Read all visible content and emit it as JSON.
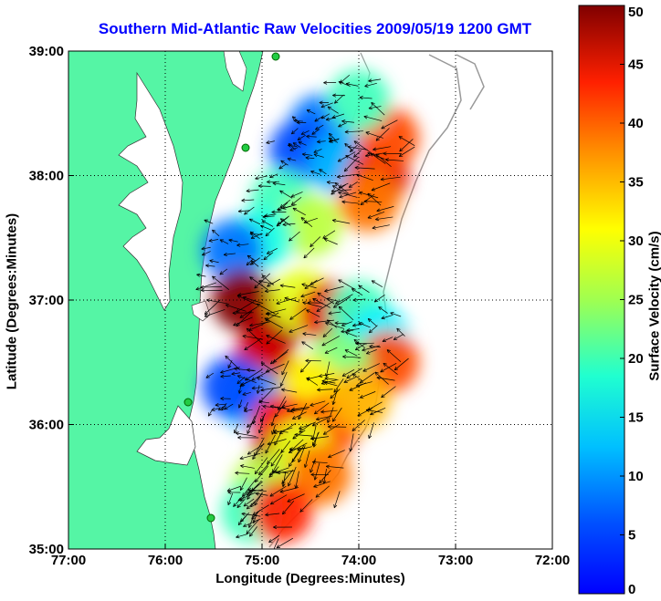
{
  "title": "Southern Mid-Atlantic Raw Velocities 2009/05/19 1200 GMT",
  "xlabel": "Longitude (Degrees:Minutes)",
  "ylabel": "Latitude (Degrees:Minutes)",
  "colorbar": {
    "label": "Surface Velocity (cm/s)",
    "min": 0,
    "max": 50,
    "ticks": [
      "0",
      "5",
      "10",
      "15",
      "20",
      "25",
      "30",
      "35",
      "40",
      "45",
      "50"
    ],
    "colormap": "jet"
  },
  "x_ticks": [
    "77:00",
    "76:00",
    "75:00",
    "74:00",
    "73:00",
    "72:00"
  ],
  "y_ticks": [
    "39:00",
    "38:00",
    "37:00",
    "36:00",
    "35:00"
  ],
  "colors": {
    "land": "#55f5a5",
    "title": "#0000ff",
    "grid": "#000000",
    "bathymetry": "#999999"
  },
  "chart_data": {
    "type": "heatmap",
    "title": "Southern Mid-Atlantic Raw Velocities 2009/05/19 1200 GMT",
    "xlabel": "Longitude (Degrees:Minutes)",
    "ylabel": "Latitude (Degrees:Minutes)",
    "xlim": [
      -77,
      -72
    ],
    "ylim": [
      35,
      39
    ],
    "x_ticks": [
      "77:00",
      "76:00",
      "75:00",
      "74:00",
      "73:00",
      "72:00"
    ],
    "y_ticks": [
      "39:00",
      "38:00",
      "37:00",
      "36:00",
      "35:00"
    ],
    "grid": true,
    "value_label": "Surface Velocity (cm/s)",
    "value_range": [
      0,
      50
    ],
    "regions": [
      {
        "lon": -74.4,
        "lat": 38.4,
        "speed": 12
      },
      {
        "lon": -74.6,
        "lat": 38.2,
        "speed": 10
      },
      {
        "lon": -74.2,
        "lat": 38.1,
        "speed": 15
      },
      {
        "lon": -73.8,
        "lat": 38.0,
        "speed": 45
      },
      {
        "lon": -73.7,
        "lat": 38.3,
        "speed": 40
      },
      {
        "lon": -74.0,
        "lat": 38.6,
        "speed": 22
      },
      {
        "lon": -73.9,
        "lat": 37.8,
        "speed": 38
      },
      {
        "lon": -74.8,
        "lat": 37.8,
        "speed": 22
      },
      {
        "lon": -74.5,
        "lat": 37.6,
        "speed": 28
      },
      {
        "lon": -75.0,
        "lat": 37.5,
        "speed": 20
      },
      {
        "lon": -75.3,
        "lat": 37.4,
        "speed": 12
      },
      {
        "lon": -75.2,
        "lat": 37.0,
        "speed": 50
      },
      {
        "lon": -74.9,
        "lat": 36.8,
        "speed": 48
      },
      {
        "lon": -75.0,
        "lat": 36.5,
        "speed": 46
      },
      {
        "lon": -74.6,
        "lat": 37.0,
        "speed": 30
      },
      {
        "lon": -74.3,
        "lat": 36.9,
        "speed": 45
      },
      {
        "lon": -74.0,
        "lat": 36.9,
        "speed": 22
      },
      {
        "lon": -73.8,
        "lat": 36.7,
        "speed": 18
      },
      {
        "lon": -73.7,
        "lat": 36.5,
        "speed": 40
      },
      {
        "lon": -74.2,
        "lat": 36.5,
        "speed": 25
      },
      {
        "lon": -74.5,
        "lat": 36.3,
        "speed": 32
      },
      {
        "lon": -75.1,
        "lat": 36.2,
        "speed": 15
      },
      {
        "lon": -75.3,
        "lat": 36.3,
        "speed": 10
      },
      {
        "lon": -74.8,
        "lat": 36.0,
        "speed": 44
      },
      {
        "lon": -74.3,
        "lat": 36.0,
        "speed": 40
      },
      {
        "lon": -74.0,
        "lat": 36.2,
        "speed": 35
      },
      {
        "lon": -74.8,
        "lat": 35.7,
        "speed": 48
      },
      {
        "lon": -74.6,
        "lat": 35.8,
        "speed": 30
      },
      {
        "lon": -74.4,
        "lat": 35.6,
        "speed": 38
      },
      {
        "lon": -75.0,
        "lat": 35.5,
        "speed": 28
      },
      {
        "lon": -75.1,
        "lat": 35.3,
        "speed": 22
      },
      {
        "lon": -74.8,
        "lat": 35.3,
        "speed": 42
      }
    ]
  }
}
